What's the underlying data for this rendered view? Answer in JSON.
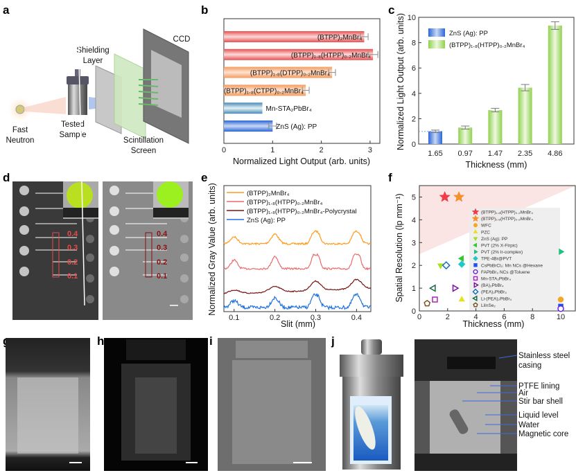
{
  "panel_labels": [
    "a",
    "b",
    "c",
    "d",
    "e",
    "f",
    "g",
    "h",
    "i",
    "j"
  ],
  "panel_a": {
    "fast_neutron": [
      "Fast",
      "Neutron"
    ],
    "tested_sample": [
      "Tested",
      "Sample"
    ],
    "shielding_layer": [
      "Shielding",
      "Layer"
    ],
    "ccd": "CCD",
    "scintillation_screen": [
      "Scintillation",
      "Screen"
    ]
  },
  "panel_d": {
    "left_labels": [
      "0.4",
      "0.3",
      "0.2",
      "0.1"
    ],
    "right_labels": [
      "0.4",
      "0.3",
      "0.2",
      "0.1"
    ]
  },
  "panel_j": {
    "annotations": [
      "Stainless steel",
      "casing",
      "PTFE lining",
      "Air",
      "Stir bar shell",
      "Liquid level",
      "Water",
      "Magnetic core"
    ]
  },
  "colors": {
    "red": "#e8504f",
    "orange": "#f59a5a",
    "blue": "#3a78d8",
    "green": "#8fd14f",
    "e_orange": "#ff9a1a",
    "e_pink": "#ea6a6a",
    "e_dark": "#7a1010",
    "e_blue": "#1f6fe0",
    "d_red": "#e84a4a",
    "d_dark": "#8b1010"
  },
  "chart_data": [
    {
      "type": "bar",
      "orientation": "horizontal",
      "xlabel": "Normalized Light Output (arb. units)",
      "xlim": [
        0,
        3.15
      ],
      "xticks": [
        "0",
        "1",
        "2",
        "3"
      ],
      "categories": [
        "(BTPP)₂MnBr₄",
        "(BTPP)₁.₈(HTPP)₀.₂MnBr₄",
        "(BTPP)₁.₈(DTPP)₀.₂MnBr₄",
        "(BTPP)₁.₈(CTPP)₀.₂MnBr₄",
        "Mn-STA₂PbBr₄",
        "ZnS (Ag): PP"
      ],
      "values": [
        2.88,
        3.06,
        2.22,
        1.68,
        0.79,
        1.0
      ],
      "errors": [
        0.08,
        0.1,
        0.07,
        0.07,
        0,
        0.08
      ]
    },
    {
      "type": "bar",
      "xlabel": "Thickness (mm)",
      "ylabel": "Normalized Light Output (arb. units)",
      "ylim": [
        0,
        10
      ],
      "yticks": [
        "0",
        "2",
        "4",
        "6",
        "8",
        "10"
      ],
      "categories": [
        "1.65",
        "0.97",
        "1.47",
        "2.35",
        "4.86"
      ],
      "values": [
        1.0,
        1.3,
        2.68,
        4.45,
        9.35
      ],
      "errors": [
        0.1,
        0.12,
        0.14,
        0.25,
        0.3
      ],
      "series_of_bar": [
        0,
        1,
        1,
        1,
        1
      ],
      "legend": [
        "ZnS (Ag): PP",
        "(BTPP)₁.₈(HTPP)₀.₂MnBr₄"
      ],
      "legend_position": "top-left"
    },
    {
      "type": "line",
      "xlabel": "Slit (mm)",
      "ylabel": "Normalized Gray Value (arb. units)",
      "xlim": [
        0.075,
        0.435
      ],
      "xticks": [
        "0.1",
        "0.2",
        "0.3",
        "0.4"
      ],
      "series": [
        {
          "name": "(BTPP)₂MnBr₄"
        },
        {
          "name": "(BTPP)₁.₈(HTPP)₀.₂MnBr₄"
        },
        {
          "name": "(BTPP)₁.₈(HTPP)₀.₂MnBr₄-Polycrystal"
        },
        {
          "name": "ZnS (Ag): PP"
        }
      ],
      "peaks_at": [
        0.1,
        0.2,
        0.3,
        0.4
      ],
      "legend_position": "top-left"
    },
    {
      "type": "scatter",
      "xlabel": "Thickness (mm)",
      "ylabel": "Spatial Resolution (lp mm⁻¹)",
      "xlim": [
        0,
        11
      ],
      "ylim": [
        0,
        5.5
      ],
      "xticks": [
        "0",
        "2",
        "4",
        "6",
        "8",
        "10"
      ],
      "yticks": [
        "0",
        "1",
        "2",
        "3",
        "4",
        "5"
      ],
      "legend_position": "center-right",
      "points": [
        {
          "label": "(BTPP)₁.₈(HTPP)₀.₂MnBr₄",
          "marker": "star",
          "color": "#f03a4a",
          "x": 1.8,
          "y": 5
        },
        {
          "label": "(BTPP)₁.₈(HTPP)₀.₂MnBr₄",
          "marker": "star",
          "color": "#f5902a",
          "x": 2.8,
          "y": 5
        },
        {
          "label": "WFC",
          "marker": "circle",
          "color": "#f5a623",
          "x": 10,
          "y": 0.5
        },
        {
          "label": "PZC",
          "marker": "triangle-up",
          "color": "#e8e020",
          "x": 3,
          "y": 0.5
        },
        {
          "label": "ZnS (Ag): PP",
          "marker": "triangle-down",
          "color": "#a8e020",
          "x": 1.5,
          "y": 2
        },
        {
          "label": "PVT (2% X-FIrpic)",
          "marker": "triangle-left",
          "color": "#2fc82f",
          "x": 3,
          "y": 2.3
        },
        {
          "label": "PVT (2% Ir-complex)",
          "marker": "triangle-right",
          "color": "#20c080",
          "x": 10,
          "y": 2.6
        },
        {
          "label": "TPE-4Br@PVT",
          "marker": "diamond",
          "color": "#20c8c8",
          "x": 3,
          "y": 2.05
        },
        {
          "label": "CsPbBrCl₂: Mn NCs @Hexane",
          "marker": "square",
          "color": "#2050f0",
          "x": 10,
          "y": 0.2
        },
        {
          "label": "FAPbBr₃ NCs @Toluene",
          "marker": "circle-half",
          "color": "#7020e0",
          "x": 10,
          "y": 0.1
        },
        {
          "label": "Mn-STA₂PbBr₄",
          "marker": "square-half",
          "color": "#b020c0",
          "x": 1.1,
          "y": 0.5
        },
        {
          "label": "(BA)₂PbBr₄",
          "marker": "triangle-right-half",
          "color": "#7a10a0",
          "x": 2.5,
          "y": 1
        },
        {
          "label": "(PEA)₂PbBr₄",
          "marker": "diamond-half",
          "color": "#1a70c0",
          "x": 1.9,
          "y": 2
        },
        {
          "label": "Li-(PEA)₂PbBr₄",
          "marker": "triangle-left-half",
          "color": "#1a6a40",
          "x": 1,
          "y": 1
        },
        {
          "label": "LiInSe₂",
          "marker": "pentagon-half",
          "color": "#7a5020",
          "x": 0.55,
          "y": 0.33
        }
      ]
    }
  ]
}
